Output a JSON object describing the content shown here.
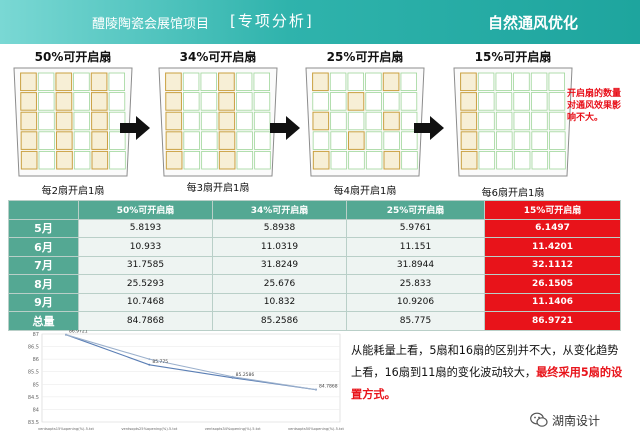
{
  "header": {
    "project": "醴陵陶瓷会展馆项目",
    "section": "[专项分析]",
    "topic": "自然通风优化"
  },
  "facades": [
    {
      "title": "50%可开启扇",
      "caption": "每2扇开启1扇",
      "open_every": 2
    },
    {
      "title": "34%可开启扇",
      "caption": "每3扇开启1扇",
      "open_every": 3
    },
    {
      "title": "25%可开启扇",
      "caption": "每4扇开启1扇",
      "open_every": 4
    },
    {
      "title": "15%可开启扇",
      "caption": "每6扇开启1扇",
      "open_every": 6
    }
  ],
  "note": "开启扇的数量对通风效果影响不大。",
  "table": {
    "headers": [
      "",
      "50%可开启扇",
      "34%可开启扇",
      "25%可开启扇",
      "15%可开启扇"
    ],
    "rows": [
      {
        "label": "5月",
        "values": [
          "5.8193",
          "5.8938",
          "5.9761",
          "6.1497"
        ]
      },
      {
        "label": "6月",
        "values": [
          "10.933",
          "11.0319",
          "11.151",
          "11.4201"
        ]
      },
      {
        "label": "7月",
        "values": [
          "31.7585",
          "31.8249",
          "31.8944",
          "32.1112"
        ]
      },
      {
        "label": "8月",
        "values": [
          "25.5293",
          "25.676",
          "25.833",
          "26.1505"
        ]
      },
      {
        "label": "9月",
        "values": [
          "10.7468",
          "10.832",
          "10.9206",
          "11.1406"
        ]
      },
      {
        "label": "总量",
        "values": [
          "84.7868",
          "85.2586",
          "85.775",
          "86.9721"
        ]
      }
    ]
  },
  "colors": {
    "header": "#2fb3ac",
    "table_header": "#54a893",
    "highlight": "#e8131a",
    "line1": "#5b7fb5",
    "line2": "#9bb0cc"
  },
  "chart_data": {
    "type": "line",
    "ylim": [
      83.5,
      87.0
    ],
    "yticks": [
      "87",
      "86.5",
      "86",
      "85.5",
      "85",
      "84.5",
      "84",
      "83.5"
    ],
    "categories": [
      "ventsopts15%opening(%).5.txt",
      "ventsopts25%opening(%).5.txt",
      "ventsopts34%opening(%).5.txt",
      "ventsopts50%opening(%).5.txt"
    ],
    "series": [
      {
        "values": [
          86.9721,
          85.775,
          85.2586,
          84.7868
        ]
      },
      {
        "values": [
          86.9721,
          86.0,
          85.3,
          84.7868
        ]
      }
    ],
    "data_labels": [
      "86.9721",
      "85.775",
      "85.2586",
      "84.7868"
    ]
  },
  "description": {
    "text1": "从能耗量上看，5扇和16扇的区别并不大，从变化趋势上看，16扇到11扇的变化波动较大，",
    "text2": "最终采用5扇的设置方式。"
  },
  "brand": {
    "name": "湖南设计",
    "icon": "wechat-icon"
  }
}
